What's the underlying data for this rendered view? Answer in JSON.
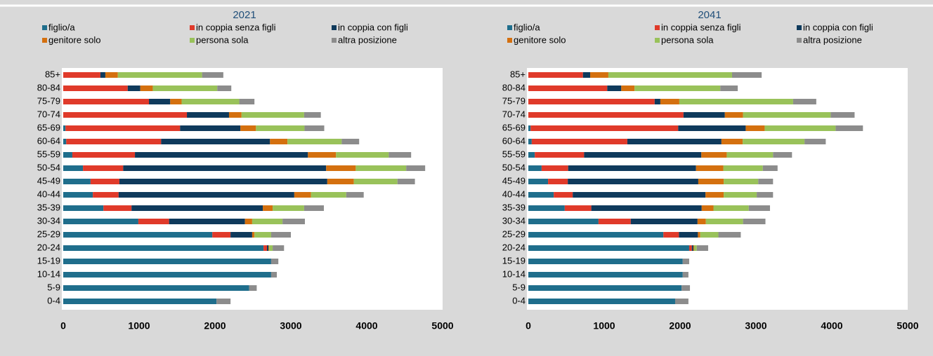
{
  "chart_data": [
    {
      "type": "stacked-bar-horizontal",
      "title": "2021",
      "categories": [
        "85+",
        "80-84",
        "75-79",
        "70-74",
        "65-69",
        "60-64",
        "55-59",
        "50-54",
        "45-49",
        "40-44",
        "35-39",
        "30-34",
        "25-29",
        "20-24",
        "15-19",
        "10-14",
        "5-9",
        "0-4"
      ],
      "series": [
        {
          "name": "figlio/a",
          "color": "#1f6e8c",
          "values": [
            0,
            0,
            0,
            0,
            30,
            40,
            120,
            260,
            360,
            390,
            530,
            990,
            1965,
            2640,
            2740,
            2740,
            2450,
            2020
          ]
        },
        {
          "name": "in coppia senza figli",
          "color": "#e03a2a",
          "values": [
            490,
            850,
            1130,
            1630,
            1510,
            1250,
            825,
            530,
            380,
            340,
            370,
            405,
            240,
            45,
            0,
            0,
            0,
            0
          ]
        },
        {
          "name": "in coppia con figli",
          "color": "#0f3a5c",
          "values": [
            65,
            165,
            280,
            555,
            795,
            1435,
            2280,
            2675,
            2740,
            2315,
            1730,
            1000,
            285,
            20,
            0,
            0,
            0,
            0
          ]
        },
        {
          "name": "genitore solo",
          "color": "#d4700f",
          "values": [
            165,
            165,
            150,
            165,
            205,
            230,
            370,
            390,
            350,
            220,
            130,
            95,
            30,
            10,
            0,
            0,
            0,
            0
          ]
        },
        {
          "name": "persona sola",
          "color": "#99c25a",
          "values": [
            1110,
            850,
            760,
            825,
            640,
            715,
            695,
            665,
            575,
            465,
            415,
            400,
            220,
            45,
            0,
            0,
            0,
            0
          ]
        },
        {
          "name": "altra posizione",
          "color": "#8c8c8c",
          "values": [
            280,
            185,
            200,
            220,
            260,
            230,
            295,
            250,
            230,
            230,
            260,
            295,
            260,
            150,
            95,
            75,
            100,
            185
          ]
        }
      ],
      "xlim": [
        0,
        5000
      ],
      "xticks": [
        0,
        1000,
        2000,
        3000,
        4000,
        5000
      ]
    },
    {
      "type": "stacked-bar-horizontal",
      "title": "2041",
      "categories": [
        "85+",
        "80-84",
        "75-79",
        "70-74",
        "65-69",
        "60-64",
        "55-59",
        "50-54",
        "45-49",
        "40-44",
        "35-39",
        "30-34",
        "25-29",
        "20-24",
        "15-19",
        "10-14",
        "5-9",
        "0-4"
      ],
      "series": [
        {
          "name": "figlio/a",
          "color": "#1f6e8c",
          "values": [
            0,
            0,
            0,
            0,
            30,
            45,
            85,
            175,
            260,
            335,
            480,
            925,
            1780,
            2120,
            2035,
            2035,
            2020,
            1935
          ]
        },
        {
          "name": "in coppia senza figli",
          "color": "#e03a2a",
          "values": [
            720,
            1040,
            1665,
            2045,
            1945,
            1260,
            650,
            350,
            260,
            250,
            350,
            425,
            205,
            35,
            0,
            0,
            0,
            0
          ]
        },
        {
          "name": "in coppia con figli",
          "color": "#0f3a5c",
          "values": [
            95,
            185,
            75,
            545,
            890,
            1240,
            1545,
            1685,
            1720,
            1750,
            1455,
            880,
            250,
            20,
            0,
            0,
            0,
            0
          ]
        },
        {
          "name": "genitore solo",
          "color": "#d4700f",
          "values": [
            240,
            175,
            250,
            240,
            250,
            280,
            335,
            360,
            335,
            240,
            155,
            110,
            30,
            10,
            0,
            0,
            0,
            0
          ]
        },
        {
          "name": "persona sola",
          "color": "#99c25a",
          "values": [
            1630,
            1130,
            1500,
            1155,
            935,
            815,
            610,
            520,
            455,
            435,
            465,
            490,
            240,
            35,
            0,
            0,
            0,
            0
          ]
        },
        {
          "name": "altra posizione",
          "color": "#8c8c8c",
          "values": [
            390,
            230,
            305,
            315,
            360,
            280,
            250,
            195,
            195,
            215,
            280,
            295,
            295,
            150,
            85,
            75,
            110,
            175
          ]
        }
      ],
      "xlim": [
        0,
        5000
      ],
      "xticks": [
        0,
        1000,
        2000,
        3000,
        4000,
        5000
      ]
    }
  ]
}
